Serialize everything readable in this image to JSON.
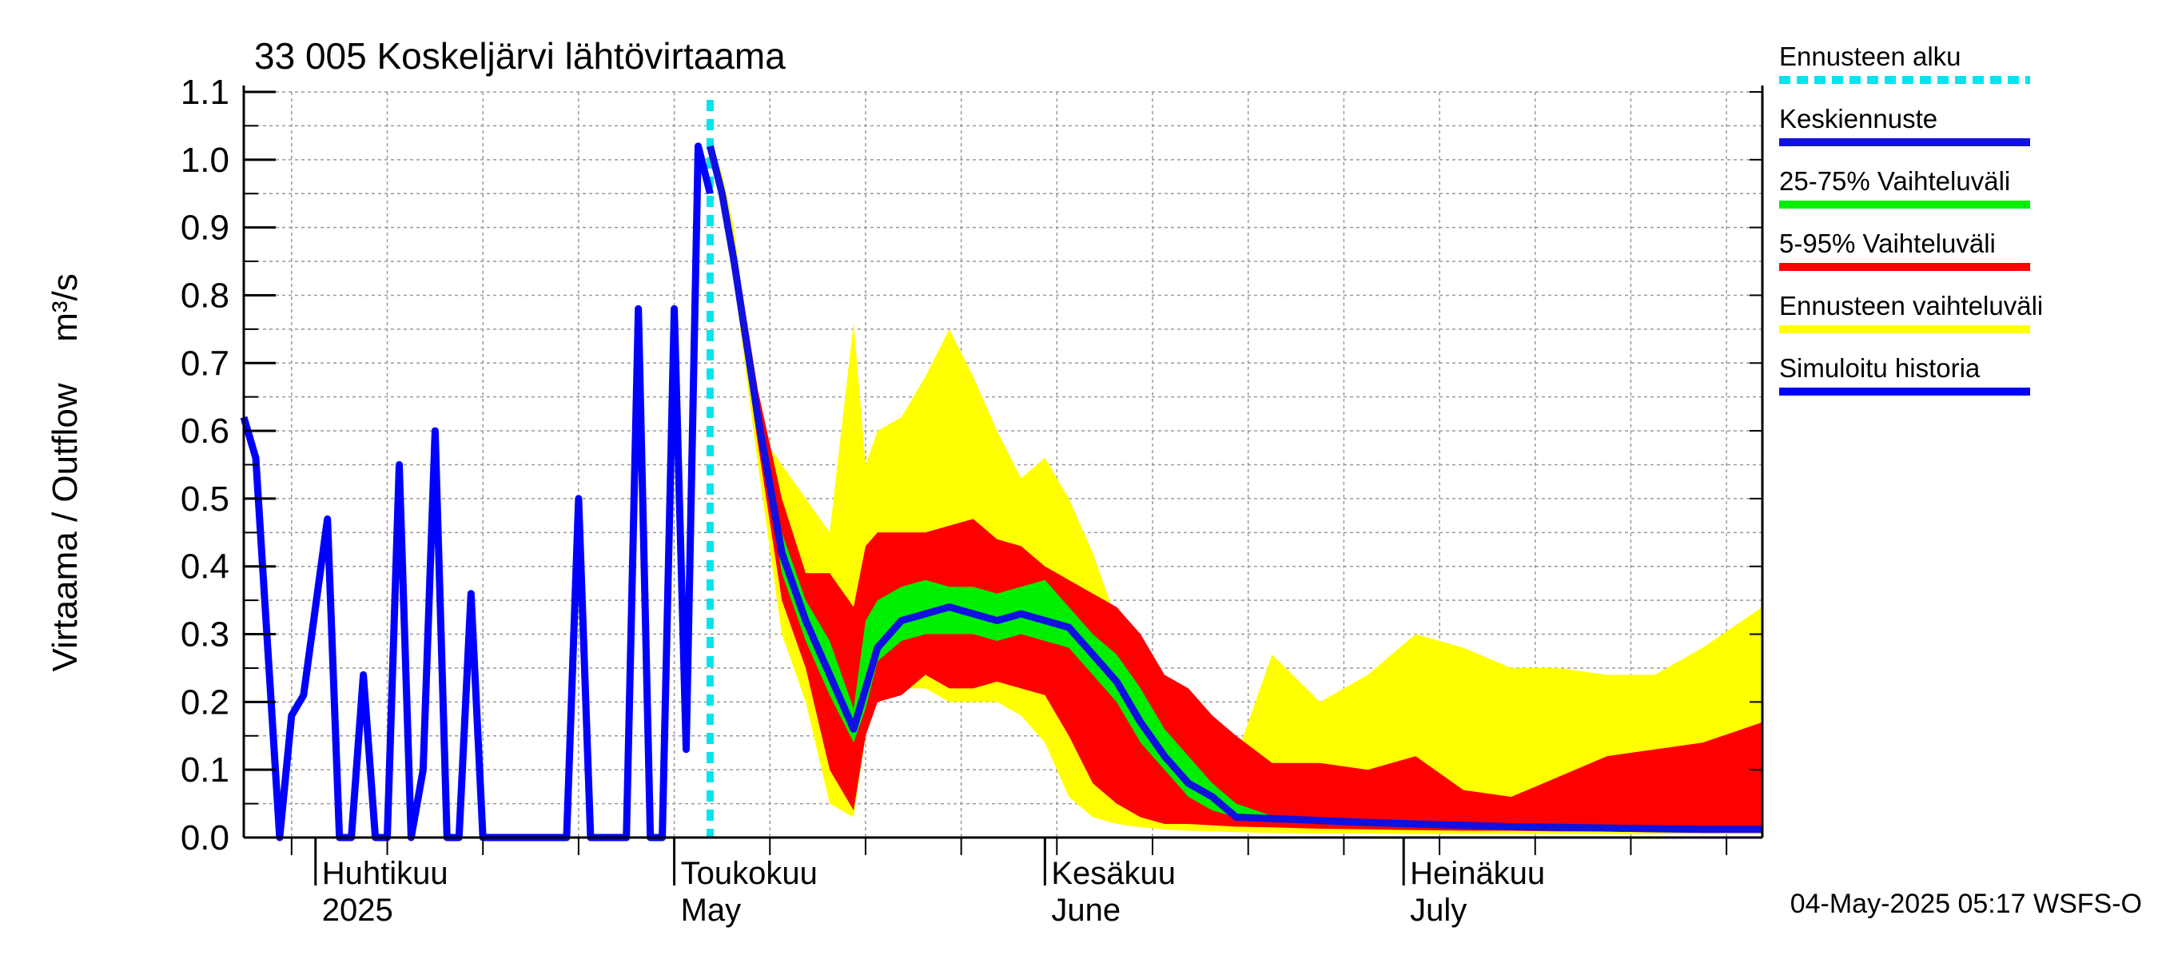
{
  "chart_data": {
    "type": "area",
    "title": "33 005 Koskeljärvi lähtövirtaama",
    "ylabel": "Virtaama / Outflow",
    "yunit": "m³/s",
    "ylim": [
      0.0,
      1.1
    ],
    "yticks": [
      "0.0",
      "0.1",
      "0.2",
      "0.3",
      "0.4",
      "0.5",
      "0.6",
      "0.7",
      "0.8",
      "0.9",
      "1.0",
      "1.1"
    ],
    "x_range": [
      "2025-03-26",
      "2025-07-31"
    ],
    "month_labels": [
      {
        "date": "2025-04-01",
        "fi": "Huhtikuu",
        "en": "2025"
      },
      {
        "date": "2025-05-01",
        "fi": "Toukokuu",
        "en": "May"
      },
      {
        "date": "2025-06-01",
        "fi": "Kesäkuu",
        "en": "June"
      },
      {
        "date": "2025-07-01",
        "fi": "Heinäkuu",
        "en": "July"
      }
    ],
    "forecast_start": "2025-05-04",
    "footer": "04-May-2025 05:17 WSFS-O",
    "grid": true,
    "legend_position": "right",
    "legend": [
      {
        "label": "Ennusteen alku",
        "color": "#00e5ee",
        "style": "dashed"
      },
      {
        "label": "Keskiennuste",
        "color": "#1010e0",
        "style": "solid"
      },
      {
        "label": "25-75% Vaihteluväli",
        "color": "#00ee00",
        "style": "solid"
      },
      {
        "label": "5-95% Vaihteluväli",
        "color": "#ff0000",
        "style": "solid"
      },
      {
        "label": "Ennusteen vaihteluväli",
        "color": "#ffff00",
        "style": "solid"
      },
      {
        "label": "Simuloitu historia",
        "color": "#0000ff",
        "style": "solid"
      }
    ],
    "colors": {
      "forecast_start": "#00e5ee",
      "median": "#1010e0",
      "band_25_75": "#00ee00",
      "band_5_95": "#ff0000",
      "band_full": "#ffff00",
      "history": "#0000ff"
    },
    "history": {
      "x": [
        "2025-03-26",
        "2025-03-27",
        "2025-03-29",
        "2025-03-30",
        "2025-03-31",
        "2025-04-02",
        "2025-04-03",
        "2025-04-04",
        "2025-04-05",
        "2025-04-06",
        "2025-04-07",
        "2025-04-08",
        "2025-04-09",
        "2025-04-10",
        "2025-04-11",
        "2025-04-12",
        "2025-04-13",
        "2025-04-14",
        "2025-04-15",
        "2025-04-16",
        "2025-04-17",
        "2025-04-18",
        "2025-04-19",
        "2025-04-20",
        "2025-04-21",
        "2025-04-22",
        "2025-04-23",
        "2025-04-24",
        "2025-04-25",
        "2025-04-26",
        "2025-04-27",
        "2025-04-28",
        "2025-04-29",
        "2025-04-30",
        "2025-05-01",
        "2025-05-02",
        "2025-05-03",
        "2025-05-04"
      ],
      "y": [
        0.62,
        0.56,
        0.0,
        0.18,
        0.21,
        0.47,
        0.0,
        0.0,
        0.24,
        0.0,
        0.0,
        0.55,
        0.0,
        0.1,
        0.6,
        0.0,
        0.0,
        0.36,
        0.0,
        0.0,
        0.0,
        0.0,
        0.0,
        0.0,
        0.0,
        0.0,
        0.5,
        0.0,
        0.0,
        0.0,
        0.0,
        0.78,
        0.0,
        0.0,
        0.78,
        0.13,
        1.02,
        0.95
      ]
    },
    "forecast": {
      "x": [
        "2025-05-04",
        "2025-05-05",
        "2025-05-06",
        "2025-05-08",
        "2025-05-10",
        "2025-05-12",
        "2025-05-14",
        "2025-05-16",
        "2025-05-17",
        "2025-05-18",
        "2025-05-20",
        "2025-05-22",
        "2025-05-24",
        "2025-05-26",
        "2025-05-28",
        "2025-05-30",
        "2025-06-01",
        "2025-06-03",
        "2025-06-05",
        "2025-06-07",
        "2025-06-09",
        "2025-06-11",
        "2025-06-13",
        "2025-06-15",
        "2025-06-17",
        "2025-06-20",
        "2025-06-24",
        "2025-06-28",
        "2025-07-02",
        "2025-07-06",
        "2025-07-10",
        "2025-07-14",
        "2025-07-18",
        "2025-07-22",
        "2025-07-26",
        "2025-07-31"
      ],
      "median": [
        1.02,
        0.95,
        0.85,
        0.62,
        0.42,
        0.32,
        0.24,
        0.16,
        0.22,
        0.28,
        0.32,
        0.33,
        0.34,
        0.33,
        0.32,
        0.33,
        0.32,
        0.31,
        0.27,
        0.23,
        0.17,
        0.12,
        0.08,
        0.06,
        0.03,
        0.028,
        0.025,
        0.022,
        0.02,
        0.018,
        0.016,
        0.015,
        0.014,
        0.013,
        0.012,
        0.012
      ],
      "p25": [
        1.02,
        0.94,
        0.84,
        0.6,
        0.39,
        0.29,
        0.21,
        0.14,
        0.19,
        0.26,
        0.29,
        0.3,
        0.3,
        0.3,
        0.29,
        0.3,
        0.29,
        0.28,
        0.24,
        0.2,
        0.14,
        0.1,
        0.06,
        0.04,
        0.03,
        0.027,
        0.024,
        0.021,
        0.019,
        0.017,
        0.015,
        0.014,
        0.013,
        0.012,
        0.011,
        0.011
      ],
      "p75": [
        1.02,
        0.96,
        0.86,
        0.64,
        0.45,
        0.35,
        0.29,
        0.19,
        0.32,
        0.35,
        0.37,
        0.38,
        0.37,
        0.37,
        0.36,
        0.37,
        0.38,
        0.34,
        0.3,
        0.27,
        0.22,
        0.16,
        0.12,
        0.08,
        0.05,
        0.032,
        0.028,
        0.025,
        0.023,
        0.021,
        0.019,
        0.018,
        0.017,
        0.016,
        0.015,
        0.015
      ],
      "p05": [
        1.02,
        0.93,
        0.83,
        0.58,
        0.35,
        0.25,
        0.1,
        0.04,
        0.15,
        0.2,
        0.21,
        0.24,
        0.22,
        0.22,
        0.23,
        0.22,
        0.21,
        0.15,
        0.08,
        0.05,
        0.03,
        0.02,
        0.02,
        0.018,
        0.016,
        0.015,
        0.013,
        0.012,
        0.011,
        0.01,
        0.01,
        0.009,
        0.009,
        0.008,
        0.008,
        0.008
      ],
      "p95": [
        1.02,
        0.97,
        0.88,
        0.66,
        0.5,
        0.39,
        0.39,
        0.34,
        0.43,
        0.45,
        0.45,
        0.45,
        0.46,
        0.47,
        0.44,
        0.43,
        0.4,
        0.38,
        0.36,
        0.34,
        0.3,
        0.24,
        0.22,
        0.18,
        0.15,
        0.11,
        0.11,
        0.1,
        0.12,
        0.07,
        0.06,
        0.09,
        0.12,
        0.13,
        0.14,
        0.17
      ],
      "max": [
        1.02,
        0.98,
        0.9,
        0.6,
        0.55,
        0.5,
        0.45,
        0.76,
        0.55,
        0.6,
        0.62,
        0.68,
        0.75,
        0.68,
        0.6,
        0.53,
        0.56,
        0.5,
        0.42,
        0.32,
        0.24,
        0.23,
        0.2,
        0.15,
        0.12,
        0.27,
        0.2,
        0.24,
        0.3,
        0.28,
        0.25,
        0.25,
        0.24,
        0.24,
        0.28,
        0.34
      ],
      "min": [
        1.02,
        0.92,
        0.82,
        0.55,
        0.3,
        0.2,
        0.05,
        0.03,
        0.15,
        0.2,
        0.22,
        0.22,
        0.2,
        0.2,
        0.2,
        0.18,
        0.14,
        0.06,
        0.03,
        0.02,
        0.015,
        0.012,
        0.01,
        0.009,
        0.008,
        0.007,
        0.006,
        0.006,
        0.005,
        0.005,
        0.005,
        0.005,
        0.005,
        0.005,
        0.005,
        0.005
      ]
    }
  }
}
